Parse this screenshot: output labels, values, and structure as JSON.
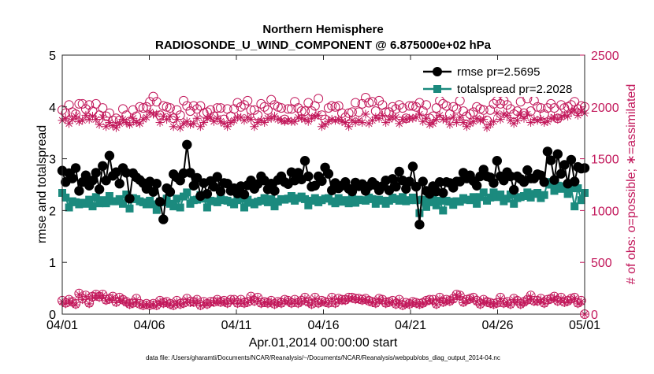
{
  "chart_data": {
    "type": "line",
    "title_line1": "Northern Hemisphere",
    "title_line2": "RADIOSONDE_U_WIND_COMPONENT @ 6.875000e+02 hPa",
    "xlabel": "Apr.01,2014 00:00:00 start",
    "ylabel_left": "rmse and totalspread",
    "ylabel_right": "# of obs: o=possible; ∗=assimilated",
    "x_tick_labels": [
      "04/01",
      "04/06",
      "04/11",
      "04/16",
      "04/21",
      "04/26",
      "05/01"
    ],
    "x_tick_days": [
      0,
      5,
      10,
      15,
      20,
      25,
      30
    ],
    "xlim_days": [
      0,
      30
    ],
    "ylim_left": [
      0,
      5
    ],
    "y_ticks_left": [
      "0",
      "1",
      "2",
      "3",
      "4",
      "5"
    ],
    "ylim_right": [
      0,
      2500
    ],
    "y_ticks_right": [
      "0",
      "500",
      "1000",
      "1500",
      "2000",
      "2500"
    ],
    "legend": [
      {
        "label": "rmse pr=2.5695"
      },
      {
        "label": "totalspread pr=2.2028"
      }
    ],
    "colors": {
      "rmse": "#000000",
      "spread": "#1b8a7e",
      "obs": "#c2185b"
    },
    "series": [
      {
        "name": "rmse",
        "values": [
          2.77,
          2.55,
          2.72,
          2.62,
          2.82,
          2.38,
          2.55,
          2.68,
          2.48,
          2.58,
          2.73,
          2.41,
          2.86,
          2.58,
          3.06,
          2.67,
          2.74,
          2.52,
          2.82,
          2.73,
          2.23,
          2.72,
          2.64,
          2.59,
          2.53,
          2.42,
          2.56,
          2.36,
          2.52,
          2.17,
          1.83,
          2.43,
          2.36,
          2.7,
          2.64,
          2.58,
          2.72,
          3.27,
          2.73,
          2.48,
          2.63,
          2.28,
          2.53,
          2.32,
          2.57,
          2.46,
          2.65,
          2.37,
          2.53,
          2.52,
          2.38,
          2.43,
          2.33,
          2.47,
          2.31,
          2.49,
          2.58,
          2.42,
          2.51,
          2.66,
          2.58,
          2.41,
          2.52,
          2.38,
          2.59,
          2.66,
          2.55,
          2.51,
          2.74,
          2.58,
          2.73,
          2.6,
          2.96,
          2.66,
          2.46,
          2.48,
          2.66,
          2.57,
          2.83,
          2.71,
          2.39,
          2.53,
          2.43,
          2.48,
          2.55,
          2.42,
          2.37,
          2.54,
          2.47,
          2.51,
          2.38,
          2.47,
          2.55,
          2.49,
          2.39,
          2.47,
          2.58,
          2.39,
          2.61,
          2.46,
          2.75,
          2.58,
          2.42,
          2.56,
          2.85,
          2.46,
          1.73,
          2.56,
          2.38,
          2.32,
          2.47,
          2.37,
          2.55,
          2.34,
          2.55,
          2.53,
          2.44,
          2.56,
          2.56,
          2.73,
          2.62,
          2.68,
          2.57,
          2.48,
          2.66,
          2.79,
          2.66,
          2.64,
          2.53,
          2.96,
          2.66,
          2.58,
          2.74,
          2.66,
          2.4,
          2.66,
          2.61,
          2.55,
          2.78,
          2.62,
          2.62,
          2.7,
          2.68,
          2.55,
          3.14,
          2.97,
          2.59,
          3.09,
          2.71,
          2.88,
          2.52,
          2.98,
          2.56,
          2.84,
          2.81,
          2.82
        ]
      },
      {
        "name": "totalspread",
        "values": [
          2.34,
          2.25,
          2.06,
          2.18,
          2.16,
          2.12,
          2.15,
          2.13,
          2.21,
          2.08,
          2.26,
          2.14,
          2.2,
          2.14,
          2.28,
          2.18,
          2.18,
          2.22,
          2.13,
          2.31,
          2.04,
          2.24,
          2.22,
          2.18,
          2.16,
          2.12,
          2.19,
          2.12,
          2.01,
          2.17,
          2.16,
          2.23,
          2.13,
          2.08,
          2.23,
          2.06,
          2.27,
          2.35,
          2.13,
          2.2,
          2.21,
          2.3,
          2.23,
          2.06,
          2.19,
          2.18,
          2.16,
          2.23,
          2.2,
          2.19,
          2.16,
          2.12,
          2.2,
          2.23,
          2.06,
          2.21,
          2.15,
          2.12,
          2.17,
          2.19,
          2.24,
          2.16,
          2.22,
          2.08,
          2.17,
          2.22,
          2.21,
          2.23,
          2.28,
          2.19,
          2.24,
          2.27,
          2.22,
          2.1,
          2.19,
          2.24,
          2.16,
          2.2,
          2.23,
          2.24,
          2.18,
          2.14,
          2.24,
          2.17,
          2.2,
          2.14,
          2.26,
          2.15,
          2.21,
          2.2,
          2.19,
          2.25,
          2.22,
          2.13,
          2.21,
          2.19,
          2.13,
          2.19,
          2.25,
          2.22,
          2.19,
          2.26,
          2.18,
          2.2,
          2.25,
          2.2,
          1.95,
          2.21,
          2.07,
          2.16,
          2.23,
          2.1,
          2.19,
          2.0,
          2.19,
          2.17,
          2.11,
          2.18,
          2.17,
          2.24,
          2.21,
          2.2,
          2.26,
          2.13,
          2.26,
          2.35,
          2.19,
          2.25,
          2.35,
          2.26,
          2.31,
          2.18,
          2.23,
          2.31,
          2.13,
          2.24,
          2.26,
          2.28,
          2.35,
          2.25,
          2.32,
          2.34,
          2.24,
          2.3,
          2.55,
          2.5,
          2.38,
          2.48,
          2.42,
          2.47,
          2.32,
          2.43,
          2.08,
          2.43,
          2.2,
          2.34
        ]
      },
      {
        "name": "obs_possible_top",
        "values": [
          1970,
          1940,
          2020,
          1950,
          1930,
          2030,
          2030,
          1980,
          2020,
          1960,
          2030,
          1920,
          1990,
          1910,
          1940,
          1870,
          1890,
          1870,
          1980,
          1920,
          1860,
          1970,
          1910,
          2000,
          1990,
          2000,
          2050,
          2100,
          2050,
          1920,
          2010,
          2000,
          1990,
          1890,
          1970,
          1920,
          2060,
          2010,
          1960,
          2010,
          1980,
          2010,
          1940,
          1950,
          1970,
          1910,
          1990,
          1990,
          1880,
          1980,
          1910,
          1980,
          2040,
          2000,
          2020,
          2060,
          1970,
          1970,
          1920,
          2030,
          2000,
          1970,
          2070,
          2020,
          2000,
          1990,
          1880,
          1980,
          1980,
          2050,
          1990,
          1960,
          1960,
          2040,
          1960,
          2010,
          2080,
          1920,
          1880,
          1990,
          2010,
          2000,
          2010,
          1940,
          1900,
          1940,
          1950,
          2040,
          1950,
          2030,
          2090,
          2040,
          2050,
          1960,
          2060,
          2020,
          1950,
          1950,
          2000,
          1980,
          2020,
          1990,
          1890,
          2010,
          2010,
          2000,
          2040,
          1960,
          2020,
          1890,
          1910,
          1990,
          2060,
          2030,
          2010,
          1930,
          2000,
          1980,
          2060,
          1960,
          1910,
          1930,
          1950,
          2000,
          1980,
          1970,
          1870,
          1970,
          2030,
          2060,
          2030,
          2060,
          2020,
          1980,
          1930,
          1960,
          2050,
          1940,
          2080,
          1960,
          2060,
          2000,
          1990,
          1930,
          1990,
          2030,
          1990,
          1890,
          2020,
          1990,
          2000,
          2020,
          2050,
          1980,
          2010,
          2000
        ]
      },
      {
        "name": "obs_assimilated_top",
        "values": [
          1870,
          1890,
          1840,
          1880,
          1910,
          1860,
          1870,
          1920,
          1880,
          1910,
          1880,
          1830,
          1900,
          1810,
          1850,
          1820,
          1800,
          1840,
          1880,
          1850,
          1830,
          1890,
          1850,
          1840,
          1880,
          1900,
          1950,
          1930,
          1930,
          1850,
          1910,
          1880,
          1910,
          1810,
          1880,
          1800,
          1840,
          1860,
          1830,
          1840,
          1890,
          1810,
          1850,
          1890,
          1900,
          1860,
          1890,
          1860,
          1840,
          1810,
          1850,
          1870,
          1900,
          1900,
          1870,
          1900,
          1880,
          1810,
          1850,
          1870,
          1850,
          1890,
          1890,
          1910,
          1880,
          1870,
          1860,
          1870,
          1860,
          1860,
          1900,
          1890,
          1880,
          1860,
          1890,
          1910,
          1920,
          1810,
          1830,
          1860,
          1880,
          1870,
          1880,
          1860,
          1850,
          1810,
          1870,
          1850,
          1870,
          1850,
          1930,
          1840,
          1870,
          1900,
          1890,
          1920,
          1850,
          1880,
          1900,
          1900,
          1840,
          1880,
          1880,
          1890,
          1890,
          1900,
          1930,
          1860,
          1890,
          1830,
          1840,
          1880,
          1920,
          1880,
          1880,
          1830,
          1900,
          1850,
          1900,
          1850,
          1810,
          1840,
          1860,
          1890,
          1870,
          1880,
          1800,
          1830,
          1860,
          1940,
          1880,
          1930,
          1920,
          1870,
          1840,
          1870,
          1930,
          1890,
          1930,
          1850,
          1880,
          1870,
          1880,
          1850,
          1860,
          1890,
          1900,
          1880,
          1900,
          1920,
          1910,
          1950,
          1970,
          1920,
          1960,
          1940
        ]
      },
      {
        "name": "obs_possible_bottom",
        "values": [
          130,
          110,
          140,
          120,
          100,
          200,
          150,
          180,
          110,
          170,
          190,
          170,
          190,
          140,
          150,
          170,
          120,
          160,
          140,
          120,
          100,
          110,
          150,
          100,
          90,
          100,
          90,
          100,
          90,
          130,
          110,
          120,
          100,
          90,
          130,
          100,
          110,
          150,
          120,
          120,
          140,
          90,
          120,
          100,
          120,
          120,
          140,
          120,
          130,
          110,
          140,
          140,
          110,
          140,
          110,
          120,
          170,
          130,
          160,
          110,
          120,
          110,
          130,
          100,
          120,
          110,
          140,
          130,
          110,
          140,
          110,
          130,
          160,
          120,
          100,
          160,
          110,
          130,
          120,
          110,
          160,
          110,
          150,
          140,
          140,
          160,
          160,
          150,
          150,
          140,
          150,
          130,
          120,
          110,
          150,
          140,
          110,
          120,
          130,
          100,
          140,
          90,
          110,
          100,
          120,
          110,
          100,
          110,
          130,
          140,
          140,
          100,
          160,
          120,
          140,
          130,
          150,
          190,
          180,
          120,
          140,
          150,
          160,
          130,
          100,
          140,
          120,
          110,
          100,
          110,
          160,
          110,
          120,
          100,
          150,
          130,
          100,
          120,
          140,
          180,
          130,
          130,
          150,
          110,
          140,
          150,
          170,
          130,
          160,
          120,
          130,
          150,
          160,
          110,
          130,
          0
        ]
      },
      {
        "name": "obs_assimilated_bottom",
        "values": [
          120,
          100,
          130,
          110,
          90,
          190,
          140,
          170,
          100,
          160,
          180,
          160,
          180,
          130,
          140,
          160,
          110,
          150,
          130,
          110,
          90,
          100,
          140,
          90,
          80,
          90,
          80,
          90,
          80,
          120,
          100,
          110,
          90,
          80,
          120,
          90,
          100,
          140,
          110,
          110,
          130,
          80,
          110,
          90,
          110,
          110,
          130,
          110,
          120,
          100,
          130,
          130,
          100,
          130,
          100,
          110,
          160,
          120,
          150,
          100,
          110,
          100,
          120,
          90,
          110,
          100,
          130,
          120,
          100,
          130,
          100,
          120,
          150,
          110,
          90,
          150,
          100,
          120,
          110,
          100,
          150,
          100,
          140,
          130,
          130,
          150,
          150,
          140,
          140,
          130,
          140,
          120,
          110,
          100,
          140,
          130,
          100,
          110,
          120,
          90,
          130,
          80,
          100,
          90,
          110,
          100,
          90,
          100,
          120,
          130,
          130,
          90,
          150,
          110,
          130,
          120,
          140,
          180,
          170,
          110,
          130,
          140,
          150,
          120,
          90,
          130,
          110,
          100,
          90,
          100,
          150,
          100,
          110,
          90,
          140,
          120,
          90,
          110,
          130,
          170,
          120,
          120,
          140,
          100,
          130,
          140,
          160,
          120,
          150,
          110,
          120,
          140,
          150,
          100,
          120,
          0
        ]
      }
    ]
  },
  "footer": {
    "data_file": "data file: /Users/gharamti/Documents/NCAR/Reanalysis/~/Documents/NCAR/Reanalysis/webpub/obs_diag_output_2014-04.nc"
  }
}
